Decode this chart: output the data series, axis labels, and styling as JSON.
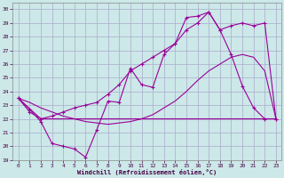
{
  "xlabel": "Windchill (Refroidissement éolien,°C)",
  "background_color": "#cce8e8",
  "grid_color": "#aaaacc",
  "line_color": "#990099",
  "xlim": [
    -0.5,
    23.5
  ],
  "ylim": [
    19,
    30.5
  ],
  "xticks": [
    0,
    1,
    2,
    3,
    4,
    5,
    6,
    7,
    8,
    9,
    10,
    11,
    12,
    13,
    14,
    15,
    16,
    17,
    18,
    19,
    20,
    21,
    22,
    23
  ],
  "yticks": [
    19,
    20,
    21,
    22,
    23,
    24,
    25,
    26,
    27,
    28,
    29,
    30
  ],
  "line1_x": [
    0,
    1,
    2,
    3,
    4,
    5,
    6,
    7,
    8,
    9,
    10,
    11,
    12,
    13,
    14,
    15,
    16,
    17,
    18,
    19,
    20,
    21,
    22,
    23
  ],
  "line1_y": [
    23.5,
    22.7,
    21.8,
    20.2,
    20.0,
    19.8,
    19.2,
    21.2,
    23.3,
    23.2,
    25.7,
    24.5,
    24.3,
    26.7,
    27.5,
    29.4,
    29.5,
    29.8,
    28.5,
    26.7,
    24.4,
    22.8,
    22.0,
    22.0
  ],
  "line2_x": [
    0,
    2,
    10,
    17,
    21,
    23
  ],
  "line2_y": [
    23.5,
    22.0,
    22.0,
    22.0,
    22.0,
    22.0
  ],
  "line3_x": [
    0,
    1,
    2,
    3,
    4,
    5,
    6,
    7,
    8,
    9,
    10,
    11,
    12,
    13,
    14,
    15,
    16,
    17,
    18,
    19,
    20,
    21,
    22,
    23
  ],
  "line3_y": [
    23.5,
    22.5,
    22.0,
    22.2,
    22.5,
    22.8,
    23.0,
    23.2,
    23.8,
    24.5,
    25.5,
    26.0,
    26.5,
    27.0,
    27.5,
    28.5,
    29.0,
    29.8,
    28.5,
    28.8,
    29.0,
    28.8,
    29.0,
    22.0
  ],
  "line4_x": [
    0,
    1,
    2,
    3,
    4,
    5,
    6,
    7,
    8,
    9,
    10,
    11,
    12,
    13,
    14,
    15,
    16,
    17,
    18,
    19,
    20,
    21,
    22,
    23
  ],
  "line4_y": [
    23.5,
    23.2,
    22.8,
    22.5,
    22.2,
    22.0,
    21.8,
    21.7,
    21.6,
    21.7,
    21.8,
    22.0,
    22.3,
    22.8,
    23.3,
    24.0,
    24.8,
    25.5,
    26.0,
    26.5,
    26.7,
    26.5,
    25.5,
    22.0
  ]
}
